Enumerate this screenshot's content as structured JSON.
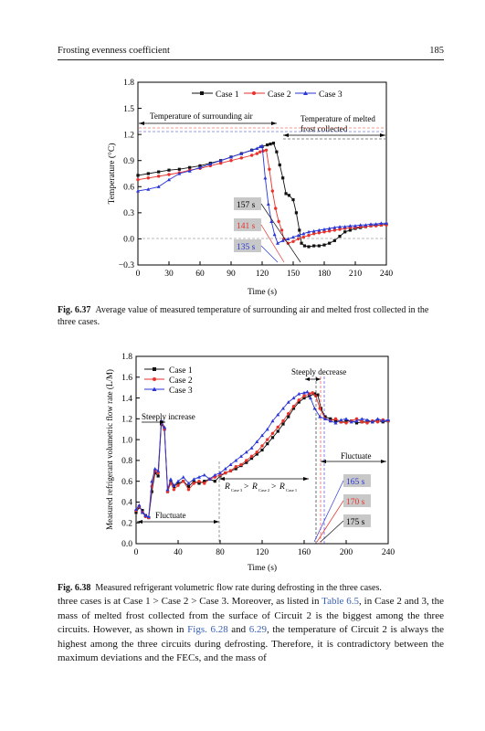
{
  "header": {
    "title": "Frosting evenness coefficient",
    "page_number": "185"
  },
  "figure_1": {
    "caption_label": "Fig. 6.37",
    "caption_text": "Average value of measured temperature of surrounding air and melted frost collected in the three cases.",
    "annotations": {
      "air": "Temperature of surrounding air",
      "melt_line1": "Temperature of melted",
      "melt_line2": "frost collected",
      "time1": "157 s",
      "time2": "141 s",
      "time3": "135 s"
    }
  },
  "figure_2": {
    "caption_label": "Fig. 6.38",
    "caption_text": "Measured refrigerant volumetric flow rate during defrosting in the three cases.",
    "annotations": {
      "decrease": "Steeply decrease",
      "increase": "Steeply increase",
      "fluct_right": "Fluctuate",
      "fluct_left": "Fluctuate",
      "time1": "165 s",
      "time2": "170 s",
      "time3": "175 s",
      "rel_R": "R",
      "rel_gt": ">",
      "rel_sub3": "Case 3",
      "rel_sub2": "Case 2",
      "rel_sub1": "Case 1"
    }
  },
  "body": {
    "p1": "three cases is at Case 1 > Case 2 > Case 3. Moreover, as listed in ",
    "ref1": "Table 6.5",
    "p2": ", in Case 2 and 3, the mass of melted frost collected from the surface of Circuit 2 is the biggest among the three circuits. However, as shown in ",
    "ref2": "Figs. 6.28",
    "p3": " and ",
    "ref3": "6.29",
    "p4": ", the temperature of Circuit 2 is always the highest among the three circuits during defrosting. Therefore, it is contradictory between the maximum deviations and the FECs, and the mass of"
  },
  "chart_data": [
    {
      "type": "line",
      "title": "",
      "xlabel": "Time (s)",
      "ylabel": "Temperature (°C)",
      "xlim": [
        0,
        240
      ],
      "ylim": [
        -0.3,
        1.8
      ],
      "xticks": [
        "0",
        "30",
        "60",
        "90",
        "120",
        "150",
        "180",
        "210",
        "240"
      ],
      "yticks": [
        "−0.3",
        "0.0",
        "0.3",
        "0.6",
        "0.9",
        "1.2",
        "1.5",
        "1.8"
      ],
      "legend": "top",
      "series": [
        {
          "name": "Case 1",
          "color": "#111111",
          "marker": "square",
          "x": [
            0,
            10,
            20,
            30,
            40,
            50,
            60,
            70,
            80,
            90,
            100,
            110,
            120,
            125,
            128,
            131,
            134,
            137,
            140,
            143,
            146,
            150,
            153,
            156,
            158,
            161,
            165,
            170,
            175,
            180,
            185,
            190,
            195,
            200,
            205,
            210,
            215,
            220,
            225,
            230,
            235,
            240
          ],
          "y": [
            0.73,
            0.75,
            0.77,
            0.79,
            0.8,
            0.82,
            0.84,
            0.87,
            0.9,
            0.94,
            0.98,
            1.02,
            1.06,
            1.08,
            1.09,
            1.1,
            1.0,
            0.85,
            0.7,
            0.52,
            0.5,
            0.45,
            0.3,
            0.1,
            -0.05,
            -0.08,
            -0.09,
            -0.08,
            -0.08,
            -0.07,
            -0.05,
            -0.02,
            0.03,
            0.08,
            0.1,
            0.12,
            0.13,
            0.14,
            0.15,
            0.16,
            0.16,
            0.17
          ]
        },
        {
          "name": "Case 2",
          "color": "#e8322b",
          "marker": "circle",
          "x": [
            0,
            10,
            20,
            30,
            40,
            50,
            60,
            70,
            80,
            90,
            100,
            110,
            115,
            118,
            121,
            124,
            127,
            130,
            133,
            136,
            139,
            141,
            145,
            150,
            155,
            160,
            165,
            170,
            175,
            180,
            185,
            190,
            195,
            200,
            205,
            210,
            215,
            220,
            225,
            230,
            235,
            240
          ],
          "y": [
            0.68,
            0.7,
            0.72,
            0.74,
            0.76,
            0.79,
            0.81,
            0.84,
            0.87,
            0.9,
            0.93,
            0.96,
            0.98,
            1.0,
            1.01,
            1.02,
            0.8,
            0.55,
            0.35,
            0.2,
            0.1,
            0.0,
            -0.05,
            -0.03,
            0.0,
            0.02,
            0.04,
            0.06,
            0.07,
            0.08,
            0.09,
            0.1,
            0.11,
            0.12,
            0.13,
            0.13,
            0.14,
            0.14,
            0.15,
            0.15,
            0.16,
            0.16
          ]
        },
        {
          "name": "Case 3",
          "color": "#2a36d6",
          "marker": "triangle",
          "x": [
            0,
            10,
            20,
            30,
            40,
            50,
            60,
            70,
            80,
            90,
            100,
            110,
            115,
            118,
            120,
            123,
            126,
            129,
            132,
            135,
            140,
            145,
            150,
            155,
            160,
            165,
            170,
            175,
            180,
            185,
            190,
            195,
            200,
            205,
            210,
            215,
            220,
            225,
            230,
            235,
            240
          ],
          "y": [
            0.55,
            0.57,
            0.6,
            0.68,
            0.75,
            0.78,
            0.82,
            0.86,
            0.9,
            0.94,
            0.98,
            1.02,
            1.04,
            1.06,
            1.07,
            0.7,
            0.4,
            0.2,
            0.05,
            -0.05,
            -0.02,
            0.0,
            0.02,
            0.04,
            0.06,
            0.08,
            0.09,
            0.1,
            0.11,
            0.12,
            0.13,
            0.14,
            0.14,
            0.15,
            0.15,
            0.16,
            0.16,
            0.17,
            0.17,
            0.18,
            0.18
          ]
        }
      ]
    },
    {
      "type": "line",
      "title": "",
      "xlabel": "Time (s)",
      "ylabel": "Measured refrigerant volumetric flow rate (L/M)",
      "xlim": [
        0,
        240
      ],
      "ylim": [
        0.0,
        1.8
      ],
      "xticks": [
        "0",
        "40",
        "80",
        "120",
        "160",
        "200",
        "240"
      ],
      "yticks": [
        "0.0",
        "0.2",
        "0.4",
        "0.6",
        "0.8",
        "1.0",
        "1.2",
        "1.4",
        "1.6",
        "1.8"
      ],
      "legend": "top-left",
      "series": [
        {
          "name": "Case 1",
          "color": "#111111",
          "marker": "square",
          "x": [
            0,
            3,
            6,
            9,
            12,
            15,
            18,
            21,
            24,
            27,
            30,
            33,
            36,
            40,
            45,
            50,
            55,
            60,
            65,
            70,
            75,
            80,
            85,
            90,
            95,
            100,
            105,
            110,
            115,
            120,
            125,
            130,
            135,
            140,
            145,
            150,
            155,
            160,
            165,
            170,
            173,
            176,
            180,
            185,
            190,
            195,
            200,
            205,
            210,
            215,
            220,
            225,
            230,
            235,
            240
          ],
          "y": [
            0.3,
            0.35,
            0.32,
            0.27,
            0.25,
            0.5,
            0.68,
            0.65,
            1.15,
            1.1,
            0.5,
            0.6,
            0.55,
            0.58,
            0.6,
            0.55,
            0.6,
            0.58,
            0.6,
            0.62,
            0.6,
            0.65,
            0.68,
            0.7,
            0.72,
            0.75,
            0.78,
            0.82,
            0.86,
            0.9,
            0.96,
            1.02,
            1.08,
            1.15,
            1.22,
            1.3,
            1.36,
            1.4,
            1.42,
            1.44,
            1.43,
            1.3,
            1.22,
            1.2,
            1.18,
            1.17,
            1.18,
            1.18,
            1.16,
            1.17,
            1.18,
            1.17,
            1.18,
            1.17,
            1.18
          ]
        },
        {
          "name": "Case 2",
          "color": "#e8322b",
          "marker": "circle",
          "x": [
            0,
            3,
            6,
            9,
            12,
            15,
            18,
            21,
            24,
            27,
            30,
            33,
            36,
            40,
            45,
            50,
            55,
            60,
            65,
            70,
            75,
            80,
            85,
            90,
            95,
            100,
            105,
            110,
            115,
            120,
            125,
            130,
            135,
            140,
            145,
            150,
            155,
            160,
            165,
            168,
            171,
            175,
            180,
            185,
            190,
            195,
            200,
            205,
            210,
            215,
            220,
            225,
            230,
            235,
            240
          ],
          "y": [
            0.32,
            0.36,
            0.3,
            0.26,
            0.25,
            0.55,
            0.7,
            0.68,
            1.17,
            1.1,
            0.5,
            0.58,
            0.52,
            0.56,
            0.6,
            0.52,
            0.58,
            0.6,
            0.58,
            0.62,
            0.64,
            0.66,
            0.68,
            0.7,
            0.74,
            0.76,
            0.8,
            0.84,
            0.88,
            0.94,
            1.0,
            1.06,
            1.12,
            1.18,
            1.25,
            1.32,
            1.38,
            1.42,
            1.44,
            1.45,
            1.42,
            1.3,
            1.2,
            1.18,
            1.2,
            1.17,
            1.16,
            1.18,
            1.2,
            1.17,
            1.16,
            1.18,
            1.17,
            1.19,
            1.18
          ]
        },
        {
          "name": "Case 3",
          "color": "#2a36d6",
          "marker": "triangle",
          "x": [
            0,
            3,
            6,
            9,
            12,
            15,
            18,
            21,
            24,
            27,
            30,
            33,
            36,
            40,
            45,
            50,
            55,
            60,
            65,
            70,
            75,
            80,
            85,
            90,
            95,
            100,
            105,
            110,
            115,
            120,
            125,
            130,
            135,
            140,
            145,
            150,
            155,
            160,
            163,
            166,
            170,
            175,
            180,
            185,
            190,
            195,
            200,
            205,
            210,
            215,
            220,
            225,
            230,
            235,
            240
          ],
          "y": [
            0.33,
            0.37,
            0.3,
            0.27,
            0.26,
            0.6,
            0.72,
            0.7,
            1.18,
            1.12,
            0.52,
            0.62,
            0.56,
            0.6,
            0.64,
            0.58,
            0.62,
            0.64,
            0.66,
            0.62,
            0.66,
            0.68,
            0.72,
            0.76,
            0.8,
            0.84,
            0.88,
            0.92,
            0.98,
            1.04,
            1.1,
            1.18,
            1.24,
            1.3,
            1.36,
            1.4,
            1.44,
            1.45,
            1.46,
            1.4,
            1.3,
            1.22,
            1.2,
            1.18,
            1.16,
            1.19,
            1.2,
            1.17,
            1.18,
            1.2,
            1.19,
            1.17,
            1.2,
            1.18,
            1.19
          ]
        }
      ]
    }
  ]
}
